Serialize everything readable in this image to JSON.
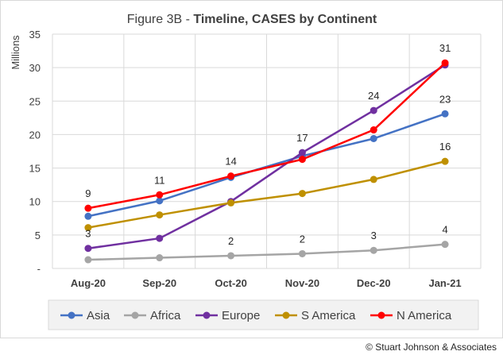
{
  "chart_data": {
    "type": "line",
    "title_prefix": "Figure 3B - ",
    "title_main": "Timeline, CASES by Continent",
    "ylabel": "Millions",
    "xlabel": "",
    "ylim": [
      0,
      35
    ],
    "yticks": [
      "-",
      "5",
      "10",
      "15",
      "20",
      "25",
      "30",
      "35"
    ],
    "grid": true,
    "legend_position": "bottom",
    "categories": [
      "Aug-20",
      "Sep-20",
      "Oct-20",
      "Nov-20",
      "Dec-20",
      "Jan-21"
    ],
    "series": [
      {
        "name": "Asia",
        "color": "#4472c4",
        "values": [
          7.8,
          10.1,
          13.6,
          16.8,
          19.4,
          23.1
        ]
      },
      {
        "name": "Africa",
        "color": "#a5a5a5",
        "values": [
          1.3,
          1.6,
          1.9,
          2.2,
          2.7,
          3.6
        ]
      },
      {
        "name": "Europe",
        "color": "#7030a0",
        "values": [
          3.0,
          4.5,
          10.0,
          17.3,
          23.6,
          30.4
        ]
      },
      {
        "name": "S America",
        "color": "#bf9000",
        "values": [
          6.1,
          8.0,
          9.8,
          11.2,
          13.3,
          16.0
        ]
      },
      {
        "name": "N America",
        "color": "#ff0000",
        "values": [
          9.0,
          11.0,
          13.8,
          16.3,
          20.7,
          30.7
        ]
      }
    ],
    "data_labels": [
      {
        "text": "9",
        "category_index": 0,
        "value": 9.0
      },
      {
        "text": "3",
        "category_index": 0,
        "value": 3.0
      },
      {
        "text": "11",
        "category_index": 1,
        "value": 11.0
      },
      {
        "text": "14",
        "category_index": 2,
        "value": 13.8
      },
      {
        "text": "2",
        "category_index": 2,
        "value": 1.9
      },
      {
        "text": "17",
        "category_index": 3,
        "value": 17.3
      },
      {
        "text": "2",
        "category_index": 3,
        "value": 2.2
      },
      {
        "text": "24",
        "category_index": 4,
        "value": 23.6
      },
      {
        "text": "3",
        "category_index": 4,
        "value": 2.7
      },
      {
        "text": "31",
        "category_index": 5,
        "value": 30.7
      },
      {
        "text": "23",
        "category_index": 5,
        "value": 23.1
      },
      {
        "text": "16",
        "category_index": 5,
        "value": 16.0
      },
      {
        "text": "4",
        "category_index": 5,
        "value": 3.6
      }
    ]
  },
  "footer": {
    "copyright": "© Stuart Johnson & Associates"
  }
}
